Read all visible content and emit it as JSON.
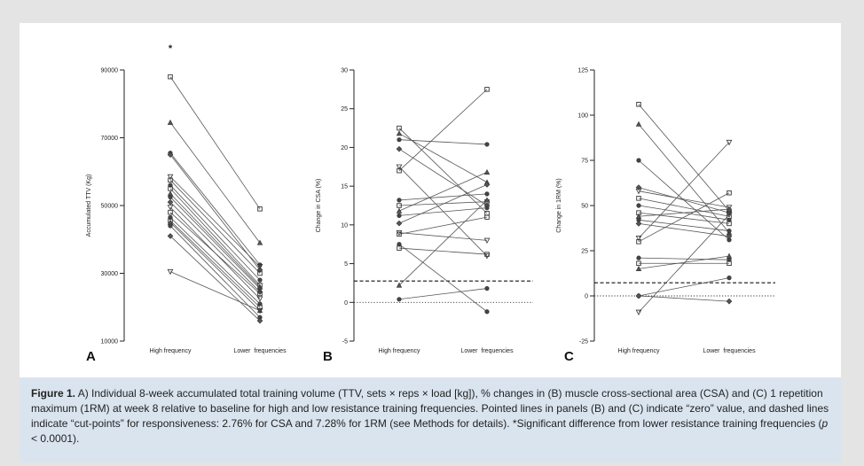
{
  "caption": {
    "label": "Figure 1.",
    "text_a": " A) Individual 8-week accumulated total training volume (TTV, sets × reps × load [kg]), % changes in (B) muscle cross-sectional area (CSA) and (C) 1 repetition maximum (1RM) at week 8 relative to baseline for high and low resistance training frequencies. Pointed lines in panels (B) and (C) indicate “zero” value, and dashed lines indicate “cut-points” for responsiveness: 2.76% for CSA and 7.28% for 1RM (see Methods for details). *Significant difference from lower resistance training frequencies (",
    "p_symbol": "p",
    "text_b": " < 0.0001)."
  },
  "chart_data": [
    {
      "type": "line",
      "panel": "A",
      "ylabel": "Accumulated TTV (Kg)",
      "categories": [
        "High frequency",
        "Lower  frequencies"
      ],
      "ylim": [
        10000,
        90000
      ],
      "yticks": [
        10000,
        30000,
        50000,
        70000,
        90000
      ],
      "ytick_labels": [
        "10000",
        "30000",
        "50000",
        "70000",
        "90000"
      ],
      "annotation": "*",
      "annotation_value": 96500,
      "pairs": [
        [
          88000,
          49000
        ],
        [
          74500,
          39000
        ],
        [
          65500,
          32500
        ],
        [
          65000,
          31000
        ],
        [
          58500,
          32000
        ],
        [
          57500,
          30000
        ],
        [
          56000,
          28000
        ],
        [
          55000,
          26500
        ],
        [
          53500,
          26000
        ],
        [
          52500,
          25500
        ],
        [
          51000,
          24500
        ],
        [
          49500,
          22500
        ],
        [
          48000,
          24000
        ],
        [
          46500,
          21000
        ],
        [
          45500,
          20000
        ],
        [
          45000,
          19000
        ],
        [
          44000,
          17000
        ],
        [
          41000,
          16000
        ],
        [
          30500,
          19000
        ]
      ]
    },
    {
      "type": "line",
      "panel": "B",
      "ylabel": "Change in CSA (%)",
      "categories": [
        "High frequency",
        "Lower  frequencies"
      ],
      "ylim": [
        -5,
        30
      ],
      "yticks": [
        -5,
        0,
        5,
        10,
        15,
        20,
        25,
        30
      ],
      "ytick_labels": [
        "-5",
        "0",
        "5",
        "10",
        "15",
        "20",
        "25",
        "30"
      ],
      "zero_line": 0,
      "cut_point": 2.76,
      "pairs": [
        [
          22.5,
          11.5
        ],
        [
          21.8,
          15.5
        ],
        [
          21.0,
          20.4
        ],
        [
          19.8,
          12.5
        ],
        [
          17.5,
          6.0
        ],
        [
          17.0,
          27.5
        ],
        [
          13.2,
          14.0
        ],
        [
          12.5,
          13.0
        ],
        [
          11.8,
          16.8
        ],
        [
          11.2,
          12.2
        ],
        [
          10.2,
          15.2
        ],
        [
          9.0,
          8.0
        ],
        [
          8.8,
          11.0
        ],
        [
          7.5,
          -1.2
        ],
        [
          7.0,
          6.2
        ],
        [
          2.2,
          13.2
        ],
        [
          0.4,
          1.8
        ]
      ]
    },
    {
      "type": "line",
      "panel": "C",
      "ylabel": "Change in 1RM (%)",
      "categories": [
        "High frequency",
        "Lower  frequencies"
      ],
      "ylim": [
        -25,
        125
      ],
      "yticks": [
        -25,
        0,
        25,
        50,
        75,
        100,
        125
      ],
      "ytick_labels": [
        "-25",
        "0",
        "25",
        "50",
        "75",
        "100",
        "125"
      ],
      "zero_line": 0,
      "cut_point": 7.28,
      "pairs": [
        [
          106,
          47
        ],
        [
          95,
          35
        ],
        [
          75,
          31
        ],
        [
          60,
          46
        ],
        [
          58,
          49
        ],
        [
          54,
          44
        ],
        [
          50,
          42
        ],
        [
          46,
          40
        ],
        [
          44,
          48
        ],
        [
          42,
          36
        ],
        [
          40,
          33
        ],
        [
          32,
          85
        ],
        [
          30,
          57
        ],
        [
          21,
          20
        ],
        [
          18,
          18
        ],
        [
          15,
          22
        ],
        [
          0,
          10
        ],
        [
          0,
          -3
        ],
        [
          -9,
          45
        ]
      ]
    }
  ]
}
